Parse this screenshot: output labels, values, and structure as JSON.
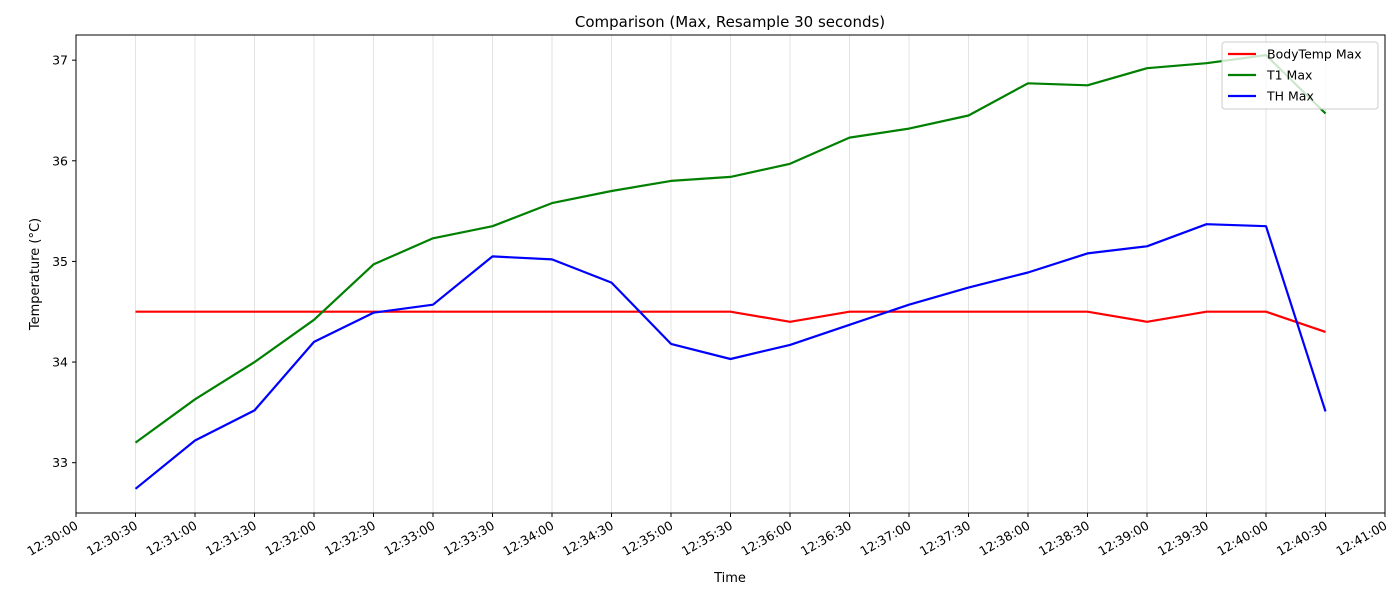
{
  "chart_data": {
    "type": "line",
    "title": "Comparison (Max, Resample 30 seconds)",
    "xlabel": "Time",
    "ylabel": "Temperature (°C)",
    "xlim": [
      "12:30:00",
      "12:41:00"
    ],
    "ylim": [
      32.5,
      37.25
    ],
    "yticks": [
      33,
      34,
      35,
      36,
      37
    ],
    "xticks": [
      "12:30:00",
      "12:30:30",
      "12:31:00",
      "12:31:30",
      "12:32:00",
      "12:32:30",
      "12:33:00",
      "12:33:30",
      "12:34:00",
      "12:34:30",
      "12:35:00",
      "12:35:30",
      "12:36:00",
      "12:36:30",
      "12:37:00",
      "12:37:30",
      "12:38:00",
      "12:38:30",
      "12:39:00",
      "12:39:30",
      "12:40:00",
      "12:40:30",
      "12:41:00"
    ],
    "x": [
      "12:30:30",
      "12:31:00",
      "12:31:30",
      "12:32:00",
      "12:32:30",
      "12:33:00",
      "12:33:30",
      "12:34:00",
      "12:34:30",
      "12:35:00",
      "12:35:30",
      "12:36:00",
      "12:36:30",
      "12:37:00",
      "12:37:30",
      "12:38:00",
      "12:38:30",
      "12:39:00",
      "12:39:30",
      "12:40:00",
      "12:40:30"
    ],
    "grid": "vertical",
    "legend_position": "top-right",
    "series": [
      {
        "name": "BodyTemp Max",
        "color": "#ff0000",
        "values": [
          34.5,
          34.5,
          34.5,
          34.5,
          34.5,
          34.5,
          34.5,
          34.5,
          34.5,
          34.5,
          34.5,
          34.4,
          34.5,
          34.5,
          34.5,
          34.5,
          34.5,
          34.4,
          34.5,
          34.5,
          34.3
        ]
      },
      {
        "name": "T1 Max",
        "color": "#008000",
        "values": [
          33.2,
          33.63,
          34.0,
          34.42,
          34.97,
          35.23,
          35.35,
          35.58,
          35.7,
          35.8,
          35.84,
          35.97,
          36.23,
          36.32,
          36.45,
          36.77,
          36.75,
          36.92,
          36.97,
          37.05,
          36.47
        ]
      },
      {
        "name": "TH Max",
        "color": "#0000ff",
        "values": [
          32.74,
          33.22,
          33.52,
          34.2,
          34.49,
          34.57,
          35.05,
          35.02,
          34.79,
          34.18,
          34.03,
          34.17,
          34.37,
          34.57,
          34.74,
          34.89,
          35.08,
          35.15,
          35.37,
          35.35,
          33.51
        ]
      }
    ]
  }
}
